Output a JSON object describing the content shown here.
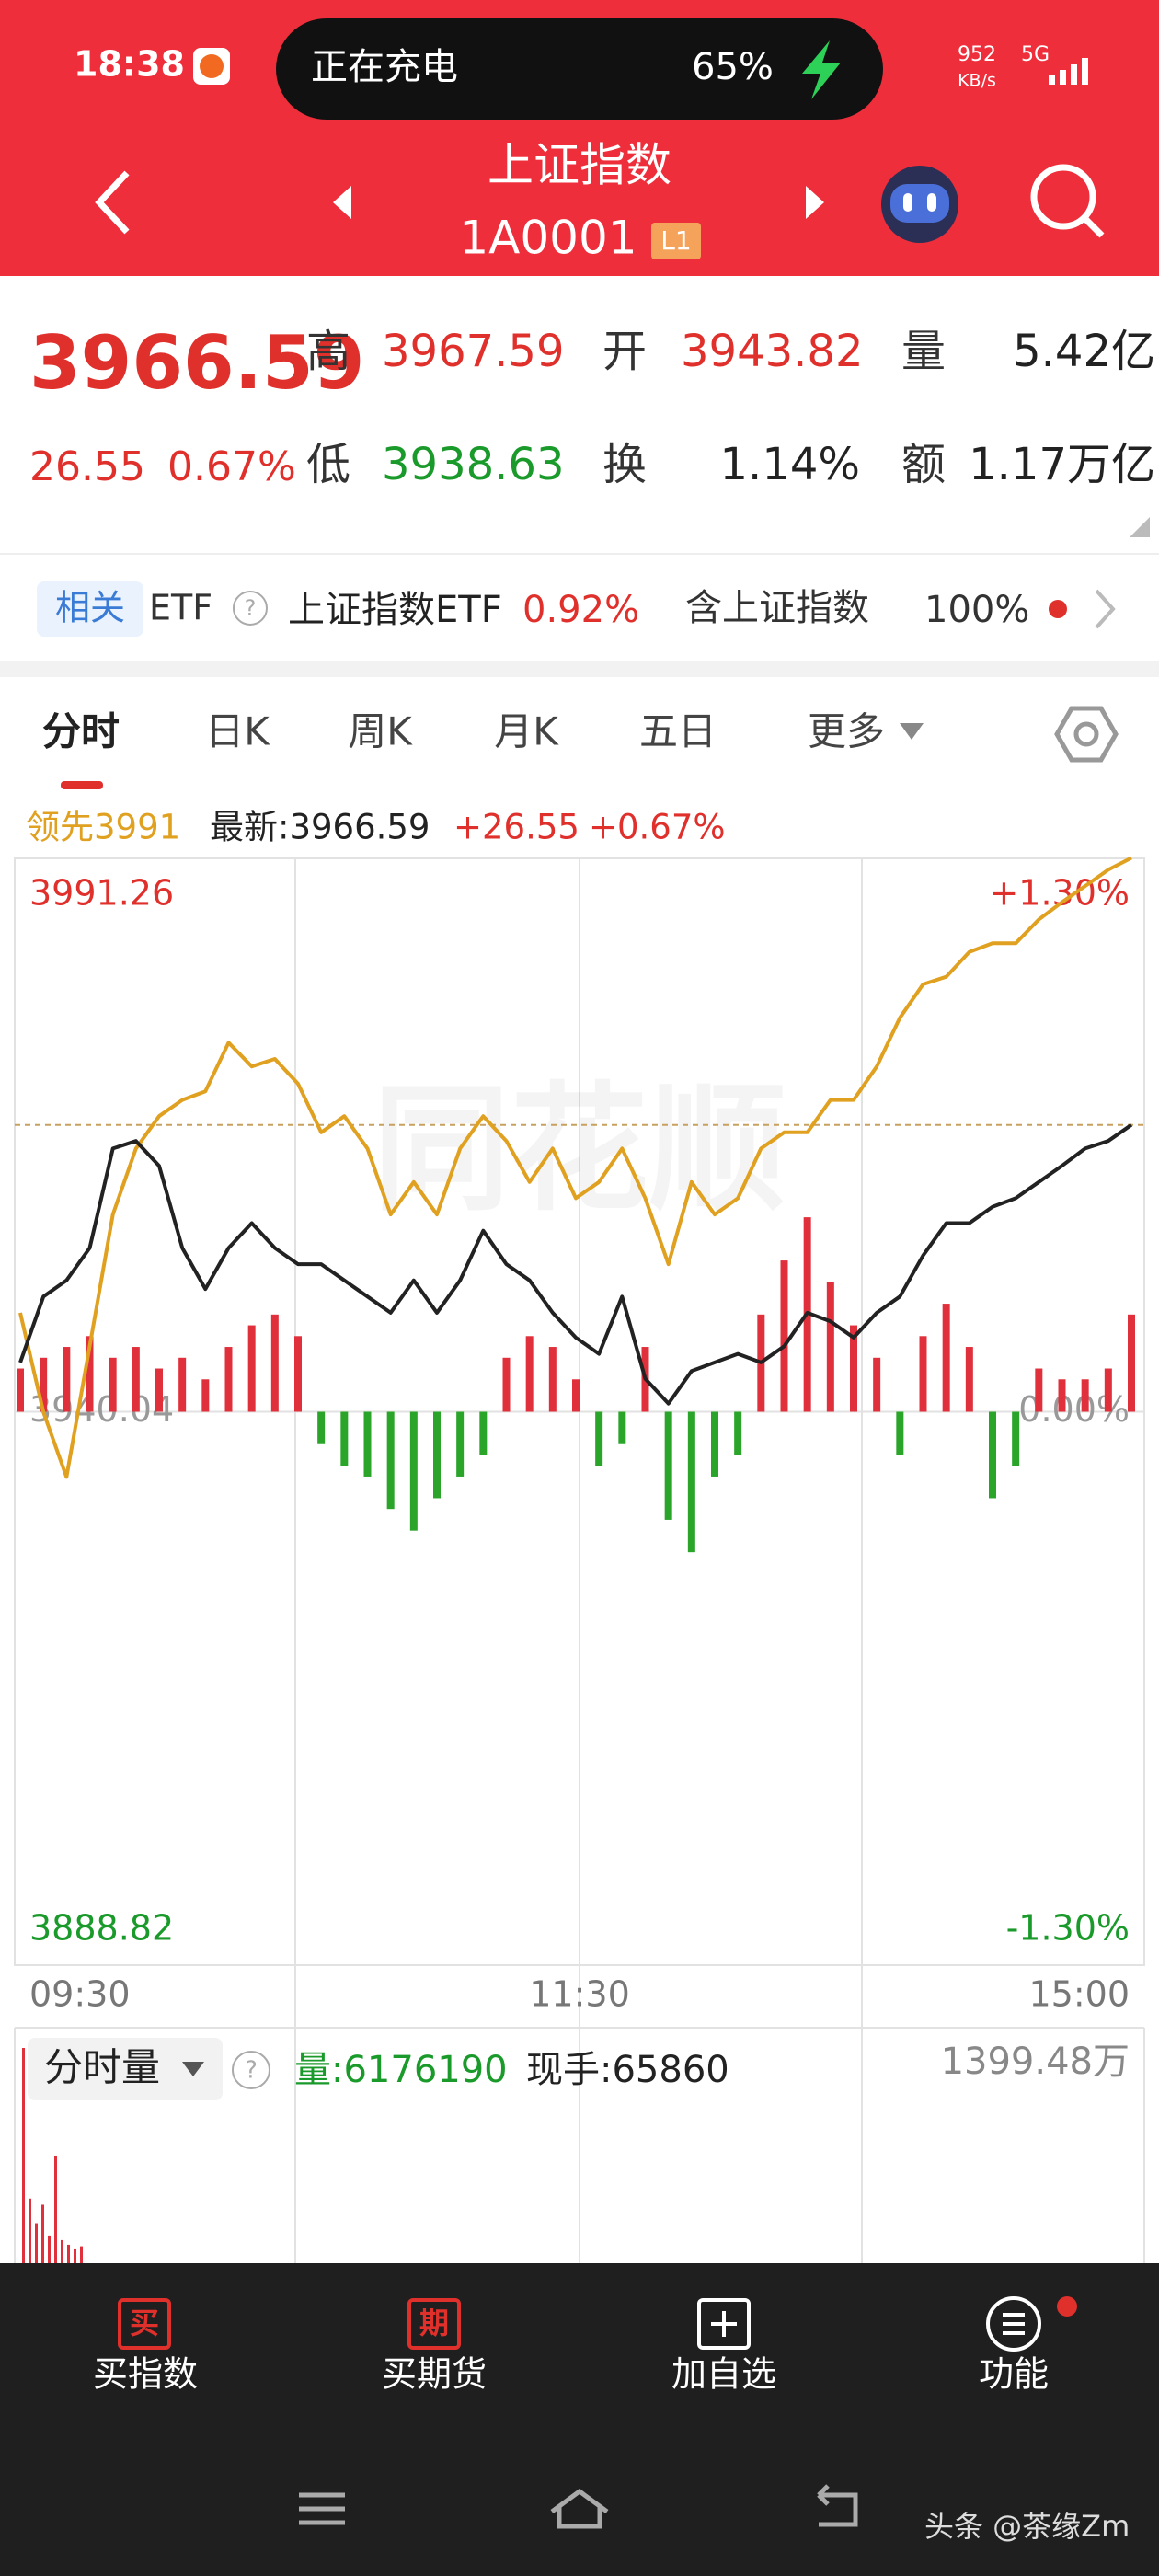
{
  "status": {
    "time": "18:38",
    "charging": "正在充电",
    "battery": "65%",
    "speed": "952",
    "speed_unit": "KB/s",
    "network": "5G"
  },
  "header": {
    "title": "上证指数",
    "code": "1A0001",
    "level": "L1"
  },
  "quote": {
    "price": "3966.59",
    "change": "26.55",
    "change_pct": "0.67%",
    "fields": [
      {
        "label": "高",
        "value": "3967.59"
      },
      {
        "label": "开",
        "value": "3943.82"
      },
      {
        "label": "量",
        "value": "5.42亿"
      },
      {
        "label": "低",
        "value": "3938.63"
      },
      {
        "label": "换",
        "value": "1.14%"
      },
      {
        "label": "额",
        "value": "1.17万亿"
      }
    ]
  },
  "related": {
    "tag": "相关",
    "kind": "ETF",
    "help": "?",
    "etf_name": "上证指数ETF",
    "etf_change": "0.92%",
    "weight_label": "含上证指数",
    "weight": "100%"
  },
  "tabs": [
    "分时",
    "日K",
    "周K",
    "月K",
    "五日",
    "更多"
  ],
  "logo_watermark": "同花顺",
  "chart_data": [
    {
      "type": "line",
      "lead": "领先3991",
      "latest": "最新:3966.59",
      "change": "+26.55",
      "change_pct": "+0.67%",
      "ylim": [
        3888.82,
        3991.26
      ],
      "yticks": [
        3888.82,
        3940.04,
        3991.26
      ],
      "y2lim": [
        -1.3,
        1.3
      ],
      "y2ticks": [
        {
          "value": -1.3,
          "label": "-1.30%"
        },
        {
          "value": 0,
          "label": "0.00%"
        },
        {
          "value": 1.3,
          "label": "+1.30%"
        }
      ],
      "x_labels": [
        "09:30",
        "11:30",
        "15:00"
      ],
      "series": [
        {
          "color": "#222222",
          "values": [
            3944.6,
            3950.7,
            3952.2,
            3955.2,
            3964.4,
            3965.1,
            3962.8,
            3955.2,
            3951.4,
            3955.2,
            3957.5,
            3955.2,
            3953.7,
            3953.7,
            3952.2,
            3950.7,
            3949.2,
            3952.2,
            3949.2,
            3952.2,
            3956.8,
            3953.7,
            3952.2,
            3949.2,
            3946.9,
            3945.4,
            3950.7,
            3943.1,
            3940.8,
            3943.8,
            3944.6,
            3945.4,
            3944.6,
            3946.1,
            3949.2,
            3948.4,
            3946.9,
            3949.2,
            3950.7,
            3954.5,
            3957.5,
            3957.5,
            3959.0,
            3959.8,
            3961.3,
            3962.8,
            3964.4,
            3965.1,
            3966.59
          ]
        },
        {
          "color": "#e0a020",
          "values": [
            3949.2,
            3940.0,
            3934.0,
            3946.1,
            3958.3,
            3964.4,
            3967.4,
            3968.9,
            3969.7,
            3974.2,
            3972.0,
            3972.7,
            3970.4,
            3965.9,
            3967.4,
            3964.4,
            3958.3,
            3961.3,
            3958.3,
            3964.4,
            3967.4,
            3965.1,
            3961.3,
            3964.4,
            3959.8,
            3961.3,
            3964.4,
            3959.8,
            3953.7,
            3961.3,
            3958.3,
            3959.8,
            3964.4,
            3965.9,
            3965.9,
            3968.9,
            3968.9,
            3972.0,
            3976.5,
            3979.6,
            3980.3,
            3982.6,
            3983.4,
            3983.4,
            3985.6,
            3987.2,
            3988.7,
            3990.2,
            3991.3
          ]
        }
      ],
      "bars": {
        "up_color": "#e0303c",
        "down_color": "#2aa52a",
        "values": [
          4,
          5,
          6,
          7,
          5,
          6,
          4,
          5,
          3,
          6,
          8,
          9,
          7,
          -3,
          -5,
          -6,
          -9,
          -11,
          -8,
          -6,
          -4,
          5,
          7,
          6,
          3,
          -5,
          -3,
          6,
          -10,
          -13,
          -6,
          -4,
          9,
          14,
          18,
          12,
          8,
          5,
          -4,
          7,
          10,
          6,
          -8,
          -5,
          4,
          3,
          3,
          4,
          9
        ]
      },
      "grid": true
    },
    {
      "type": "bar",
      "title": "分时量",
      "help": "?",
      "volume": "量:6176190",
      "current": "现手:65860",
      "ylim": [
        0,
        1399.48
      ],
      "yticks": [
        {
          "value": 1399.48,
          "label": "1399.48万"
        }
      ],
      "color": "#e0303c",
      "values": [
        1399.48,
        420,
        260,
        380,
        180,
        700,
        150,
        120,
        90,
        110
      ]
    }
  ],
  "nav": [
    {
      "icon": "买",
      "label": "买指数"
    },
    {
      "icon": "期",
      "label": "买期货"
    },
    {
      "label": "加自选"
    },
    {
      "label": "功能"
    }
  ],
  "watermark": "头条 @茶缘Zm"
}
